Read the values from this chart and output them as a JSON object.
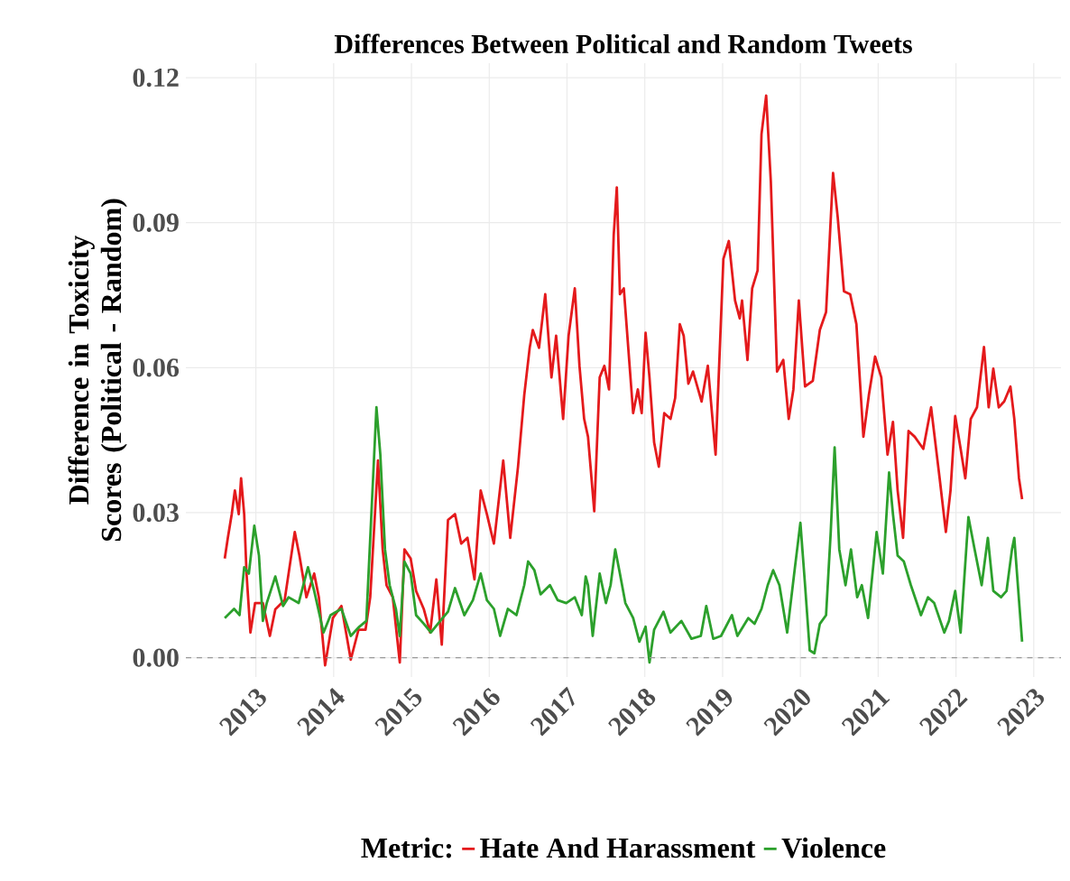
{
  "chart_data": {
    "type": "line",
    "title": "Differences Between Political and Random Tweets",
    "xlabel": null,
    "ylabel": "Difference in Toxicity Scores (Political - Random)",
    "legend_title": "Metric:",
    "legend": "bottom",
    "grid": true,
    "line_style": "solid",
    "xlim": [
      2012.1,
      2023.35
    ],
    "ylim": [
      -0.004,
      0.123
    ],
    "xticks": [
      2013,
      2014,
      2015,
      2016,
      2017,
      2018,
      2019,
      2020,
      2021,
      2022,
      2023
    ],
    "yticks": [
      {
        "value": 0,
        "label": "0.00"
      },
      0.03,
      0.06,
      0.09,
      0.12
    ],
    "ref_lines": [
      {
        "axis": "y",
        "value": 0,
        "label": null,
        "color": "#999999",
        "line_style": "dashed"
      }
    ],
    "series": [
      {
        "name": "Hate And Harassment",
        "color": "#e41a1c",
        "x": [
          2012.6,
          2012.64,
          2012.69,
          2012.73,
          2012.78,
          2012.81,
          2012.85,
          2012.88,
          2012.93,
          2012.99,
          2013.09,
          2013.18,
          2013.25,
          2013.37,
          2013.5,
          2013.56,
          2013.65,
          2013.75,
          2013.81,
          2013.89,
          2013.99,
          2014.1,
          2014.22,
          2014.32,
          2014.41,
          2014.47,
          2014.57,
          2014.63,
          2014.68,
          2014.76,
          2014.85,
          2014.91,
          2014.99,
          2015.06,
          2015.16,
          2015.24,
          2015.32,
          2015.39,
          2015.47,
          2015.56,
          2015.64,
          2015.72,
          2015.81,
          2015.89,
          2015.97,
          2016.06,
          2016.18,
          2016.27,
          2016.37,
          2016.45,
          2016.52,
          2016.56,
          2016.64,
          2016.72,
          2016.8,
          2016.86,
          2016.95,
          2017.02,
          2017.1,
          2017.16,
          2017.22,
          2017.27,
          2017.35,
          2017.42,
          2017.48,
          2017.54,
          2017.6,
          2017.64,
          2017.68,
          2017.73,
          2017.81,
          2017.85,
          2017.91,
          2017.96,
          2018.01,
          2018.06,
          2018.12,
          2018.18,
          2018.25,
          2018.33,
          2018.39,
          2018.45,
          2018.5,
          2018.56,
          2018.62,
          2018.73,
          2018.81,
          2018.91,
          2019.01,
          2019.08,
          2019.16,
          2019.22,
          2019.25,
          2019.32,
          2019.38,
          2019.45,
          2019.5,
          2019.56,
          2019.62,
          2019.7,
          2019.78,
          2019.85,
          2019.91,
          2019.98,
          2020.06,
          2020.16,
          2020.25,
          2020.33,
          2020.42,
          2020.48,
          2020.56,
          2020.64,
          2020.72,
          2020.81,
          2020.88,
          2020.96,
          2021.04,
          2021.12,
          2021.19,
          2021.25,
          2021.32,
          2021.39,
          2021.47,
          2021.58,
          2021.68,
          2021.79,
          2021.87,
          2021.93,
          2021.99,
          2022.06,
          2022.12,
          2022.19,
          2022.27,
          2022.36,
          2022.42,
          2022.48,
          2022.55,
          2022.62,
          2022.7,
          2022.75,
          2022.81,
          2022.85
        ],
        "values": [
          0.0205,
          0.0248,
          0.0297,
          0.0346,
          0.0297,
          0.0371,
          0.0297,
          0.0174,
          0.0052,
          0.0113,
          0.0113,
          0.0045,
          0.01,
          0.0119,
          0.026,
          0.0211,
          0.0125,
          0.0174,
          0.0125,
          -0.0016,
          0.0082,
          0.0107,
          -0.0004,
          0.0058,
          0.0058,
          0.0125,
          0.0408,
          0.0224,
          0.015,
          0.0125,
          -0.001,
          0.0224,
          0.0205,
          0.0138,
          0.01,
          0.0052,
          0.0162,
          0.0027,
          0.0285,
          0.0297,
          0.0236,
          0.0248,
          0.0162,
          0.0346,
          0.0297,
          0.0236,
          0.0408,
          0.0248,
          0.0395,
          0.0543,
          0.0641,
          0.0678,
          0.0641,
          0.0752,
          0.058,
          0.0666,
          0.0494,
          0.0666,
          0.0764,
          0.0604,
          0.0494,
          0.0457,
          0.0303,
          0.058,
          0.0604,
          0.0555,
          0.0874,
          0.0973,
          0.0752,
          0.0764,
          0.0592,
          0.0506,
          0.0555,
          0.0506,
          0.0672,
          0.058,
          0.0445,
          0.0395,
          0.0506,
          0.0494,
          0.0537,
          0.069,
          0.0666,
          0.0567,
          0.0592,
          0.053,
          0.0604,
          0.042,
          0.0825,
          0.0862,
          0.0739,
          0.0702,
          0.0739,
          0.0616,
          0.0764,
          0.0801,
          0.1083,
          0.1163,
          0.0985,
          0.0592,
          0.0616,
          0.0494,
          0.0555,
          0.0739,
          0.0561,
          0.0573,
          0.0678,
          0.0715,
          0.1003,
          0.0911,
          0.0758,
          0.0752,
          0.069,
          0.0457,
          0.0543,
          0.0623,
          0.058,
          0.042,
          0.0488,
          0.0346,
          0.0248,
          0.0469,
          0.0457,
          0.0432,
          0.0518,
          0.0371,
          0.026,
          0.0346,
          0.05,
          0.0432,
          0.0371,
          0.0494,
          0.0518,
          0.0643,
          0.0518,
          0.0598,
          0.0518,
          0.053,
          0.0561,
          0.0494,
          0.0371,
          0.0328
        ]
      },
      {
        "name": "Violence",
        "color": "#2ca02c",
        "x": [
          2012.6,
          2012.72,
          2012.79,
          2012.85,
          2012.91,
          2012.98,
          2013.04,
          2013.09,
          2013.14,
          2013.25,
          2013.35,
          2013.42,
          2013.55,
          2013.67,
          2013.75,
          2013.87,
          2013.96,
          2014.1,
          2014.22,
          2014.33,
          2014.42,
          2014.55,
          2014.6,
          2014.66,
          2014.72,
          2014.8,
          2014.85,
          2014.91,
          2014.99,
          2015.06,
          2015.16,
          2015.25,
          2015.37,
          2015.47,
          2015.56,
          2015.68,
          2015.79,
          2015.89,
          2015.97,
          2016.06,
          2016.14,
          2016.24,
          2016.35,
          2016.45,
          2016.5,
          2016.58,
          2016.66,
          2016.78,
          2016.88,
          2016.99,
          2017.1,
          2017.19,
          2017.24,
          2017.27,
          2017.33,
          2017.42,
          2017.5,
          2017.56,
          2017.62,
          2017.68,
          2017.75,
          2017.85,
          2017.93,
          2018.01,
          2018.06,
          2018.12,
          2018.24,
          2018.33,
          2018.47,
          2018.6,
          2018.72,
          2018.79,
          2018.88,
          2018.98,
          2019.12,
          2019.19,
          2019.33,
          2019.41,
          2019.5,
          2019.58,
          2019.65,
          2019.73,
          2019.83,
          2019.93,
          2020.0,
          2020.06,
          2020.12,
          2020.18,
          2020.25,
          2020.33,
          2020.39,
          2020.44,
          2020.5,
          2020.58,
          2020.65,
          2020.73,
          2020.79,
          2020.87,
          2020.98,
          2021.06,
          2021.14,
          2021.19,
          2021.25,
          2021.33,
          2021.42,
          2021.55,
          2021.64,
          2021.72,
          2021.85,
          2021.91,
          2021.99,
          2022.06,
          2022.16,
          2022.24,
          2022.33,
          2022.41,
          2022.48,
          2022.58,
          2022.65,
          2022.72,
          2022.75,
          2022.85
        ],
        "values": [
          0.0082,
          0.0101,
          0.0088,
          0.0187,
          0.0174,
          0.0273,
          0.0211,
          0.0076,
          0.0113,
          0.0168,
          0.0107,
          0.0125,
          0.0113,
          0.0187,
          0.0138,
          0.0052,
          0.0088,
          0.0101,
          0.0045,
          0.0064,
          0.0076,
          0.0518,
          0.042,
          0.0224,
          0.015,
          0.0101,
          0.0045,
          0.0199,
          0.0174,
          0.0088,
          0.007,
          0.0052,
          0.0076,
          0.0095,
          0.0144,
          0.0088,
          0.0119,
          0.0174,
          0.0119,
          0.0101,
          0.0045,
          0.0101,
          0.0088,
          0.015,
          0.0199,
          0.0181,
          0.0131,
          0.015,
          0.0119,
          0.0113,
          0.0125,
          0.0088,
          0.0168,
          0.015,
          0.0045,
          0.0174,
          0.0113,
          0.015,
          0.0224,
          0.0174,
          0.0113,
          0.0082,
          0.0033,
          0.0064,
          -0.001,
          0.0058,
          0.0095,
          0.0052,
          0.0076,
          0.0039,
          0.0045,
          0.0107,
          0.0039,
          0.0045,
          0.0088,
          0.0045,
          0.0082,
          0.007,
          0.0101,
          0.015,
          0.0181,
          0.015,
          0.0052,
          0.0187,
          0.0279,
          0.015,
          0.0015,
          0.0009,
          0.007,
          0.0088,
          0.026,
          0.0435,
          0.0224,
          0.015,
          0.0224,
          0.0125,
          0.015,
          0.0082,
          0.026,
          0.0174,
          0.0383,
          0.0297,
          0.0211,
          0.0199,
          0.015,
          0.0088,
          0.0125,
          0.0113,
          0.0052,
          0.0076,
          0.0138,
          0.0052,
          0.0291,
          0.0224,
          0.015,
          0.0248,
          0.0138,
          0.0125,
          0.0138,
          0.0224,
          0.0248,
          0.0033
        ]
      }
    ]
  }
}
